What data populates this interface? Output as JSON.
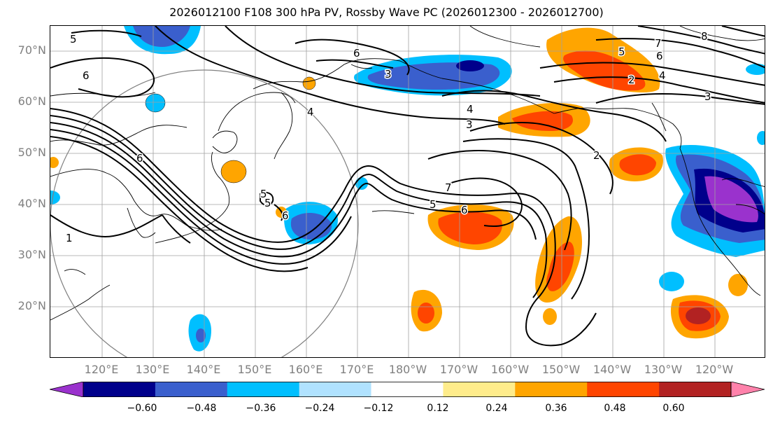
{
  "title": "2026012100 F108 300 hPa PV, Rossby Wave PC (2026012300 - 2026012700)",
  "lat_labels": [
    "70°N",
    "60°N",
    "50°N",
    "40°N",
    "30°N",
    "20°N"
  ],
  "lon_labels": [
    "120°E",
    "130°E",
    "140°E",
    "150°E",
    "160°E",
    "170°E",
    "180°W",
    "170°W",
    "160°W",
    "150°W",
    "140°W",
    "130°W",
    "120°W"
  ],
  "colorbar": {
    "ticks": [
      "−0.60",
      "−0.48",
      "−0.36",
      "−0.24",
      "−0.12",
      "0.12",
      "0.24",
      "0.36",
      "0.48",
      "0.60"
    ],
    "colors": [
      "#9a32cd",
      "#00008b",
      "#3a5fcd",
      "#00bfff",
      "#b0e2ff",
      "#ffffff",
      "#ffec8b",
      "#ffa500",
      "#ff4500",
      "#b22222",
      "#ff82ab"
    ]
  },
  "contour_labels": [
    "5",
    "6",
    "8",
    "7",
    "6",
    "5",
    "4",
    "2",
    "3",
    "4",
    "4",
    "3",
    "6",
    "1",
    "2",
    "5",
    "6",
    "5",
    "7",
    "5",
    "6",
    "6",
    "3"
  ],
  "colors": {
    "map_border": "#000000",
    "grid": "#a0a0a0",
    "label_gray": "#808080"
  }
}
